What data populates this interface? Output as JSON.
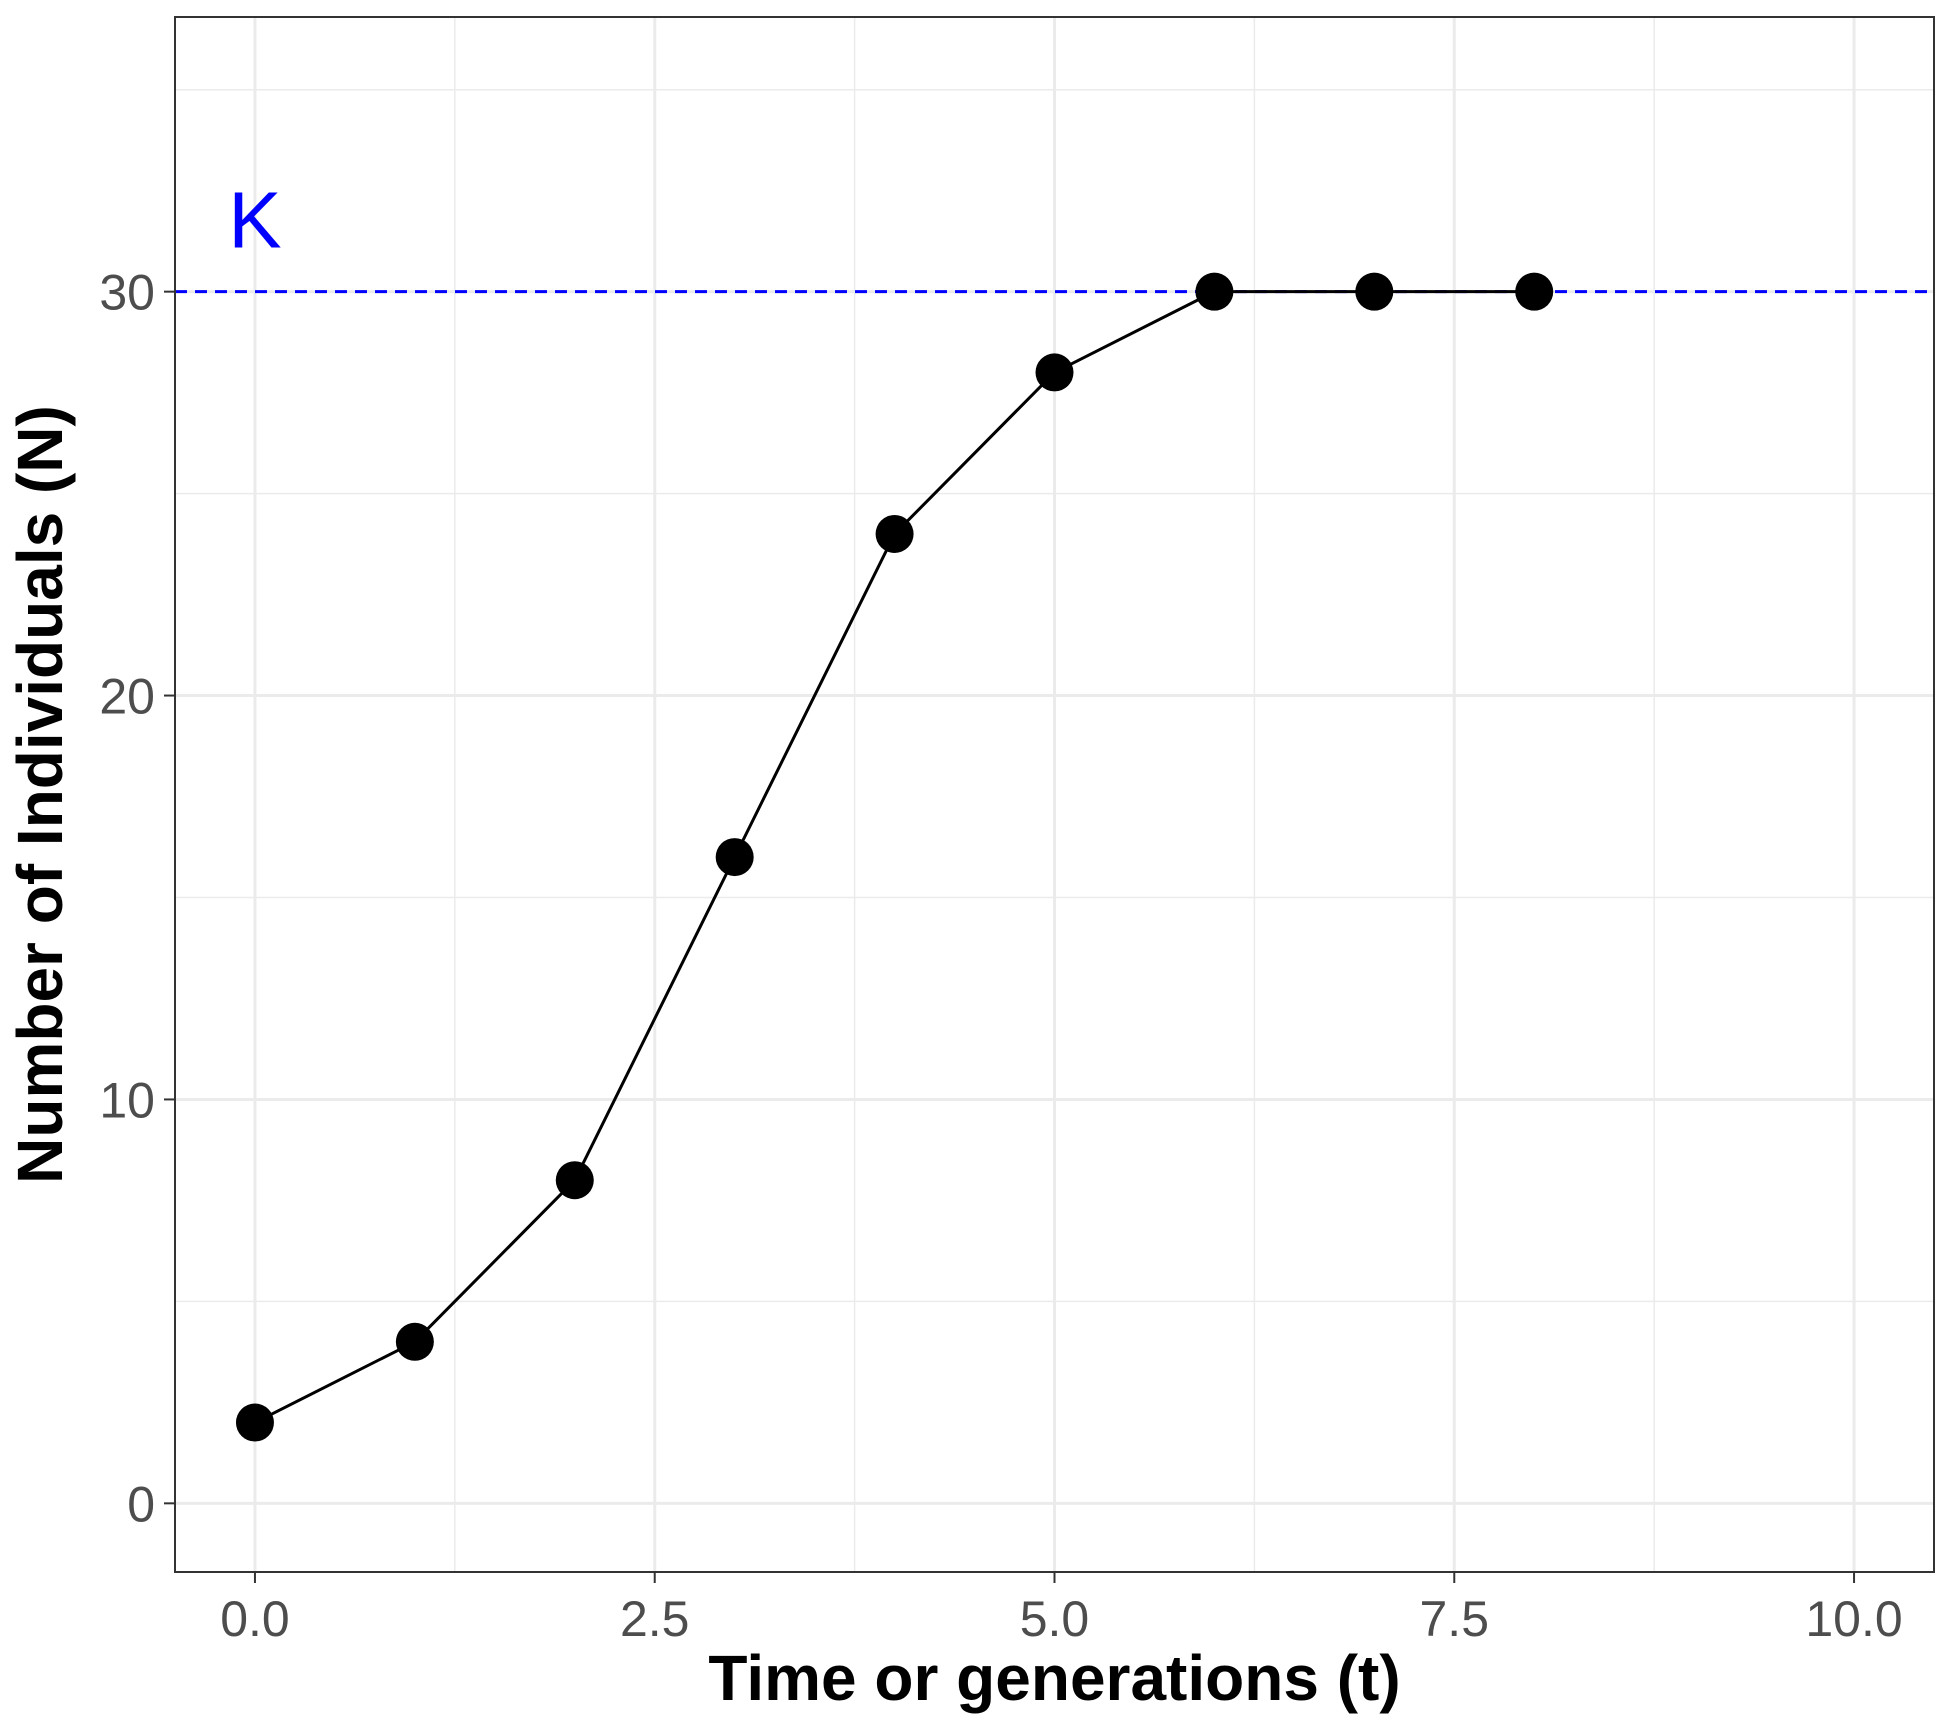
{
  "chart_data": {
    "type": "line",
    "xlabel": "Time or generations (t)",
    "ylabel": "Number of Individuals (N)",
    "xlim": [
      -0.5,
      10.5
    ],
    "ylim": [
      -1.7,
      36.8
    ],
    "x_ticks": [
      0,
      2.5,
      5,
      7.5,
      10
    ],
    "x_tick_labels": [
      "0.0",
      "2.5",
      "5.0",
      "7.5",
      "10.0"
    ],
    "y_ticks": [
      0,
      10,
      20,
      30
    ],
    "y_tick_labels": [
      "0",
      "10",
      "20",
      "30"
    ],
    "grid": true,
    "series": [
      {
        "x": [
          0,
          1,
          2,
          3,
          4,
          5,
          6,
          7,
          8
        ],
        "values": [
          2,
          4,
          8,
          16,
          24,
          28,
          30,
          30,
          30
        ],
        "color": "#000000",
        "markers": true
      }
    ],
    "reference_line": {
      "y": 30,
      "style": "dashed",
      "color": "#0000ff",
      "label": "K"
    }
  }
}
